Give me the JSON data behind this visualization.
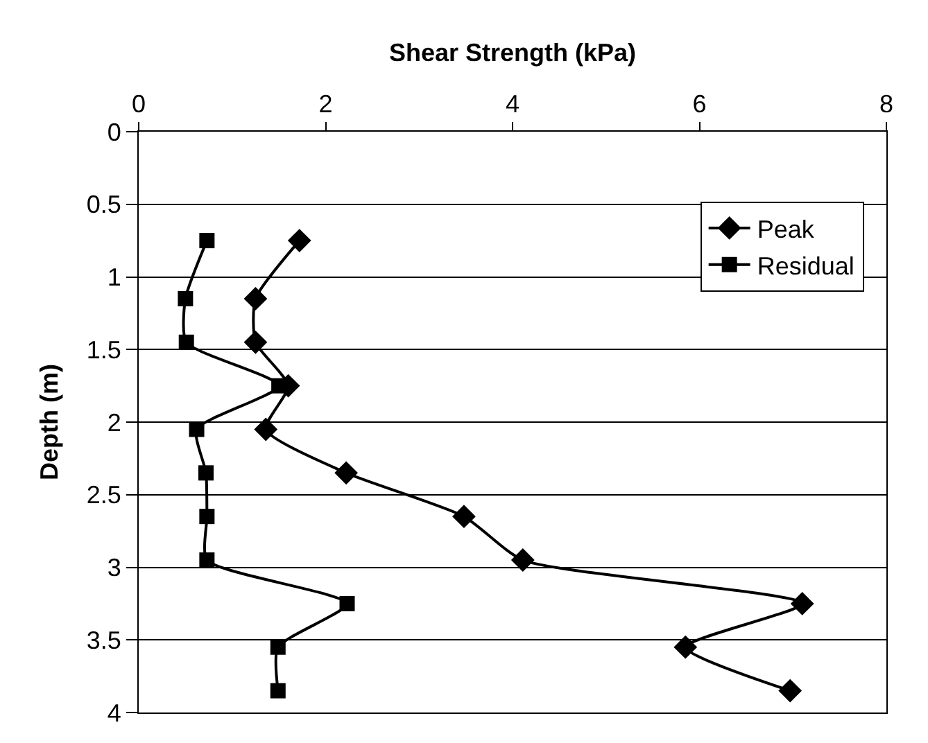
{
  "chart_data": {
    "type": "line",
    "xlabel": "Shear Strength (kPa)",
    "ylabel": "Depth (m)",
    "xlim": [
      0,
      8
    ],
    "xticks": [
      0,
      2,
      4,
      6,
      8
    ],
    "ylim": [
      4,
      0
    ],
    "yticks": [
      0,
      0.5,
      1,
      1.5,
      2,
      2.5,
      3,
      3.5,
      4
    ],
    "grid": "y",
    "legend": "top right",
    "line_style": "solid",
    "series": [
      {
        "name": "Peak",
        "color": "#000000",
        "marker": "diamond",
        "x": [
          1.72,
          1.25,
          1.25,
          1.6,
          1.36,
          2.22,
          3.48,
          4.11,
          7.1,
          5.85,
          6.97
        ],
        "values": [
          0.75,
          1.15,
          1.45,
          1.75,
          2.05,
          2.35,
          2.65,
          2.95,
          3.25,
          3.55,
          3.85
        ]
      },
      {
        "name": "Residual",
        "color": "#000000",
        "marker": "square",
        "x": [
          0.73,
          0.5,
          0.51,
          1.5,
          0.62,
          0.72,
          0.73,
          0.73,
          2.23,
          1.49,
          1.49
        ],
        "values": [
          0.75,
          1.15,
          1.45,
          1.75,
          2.05,
          2.35,
          2.65,
          2.95,
          3.25,
          3.55,
          3.85
        ]
      }
    ]
  }
}
